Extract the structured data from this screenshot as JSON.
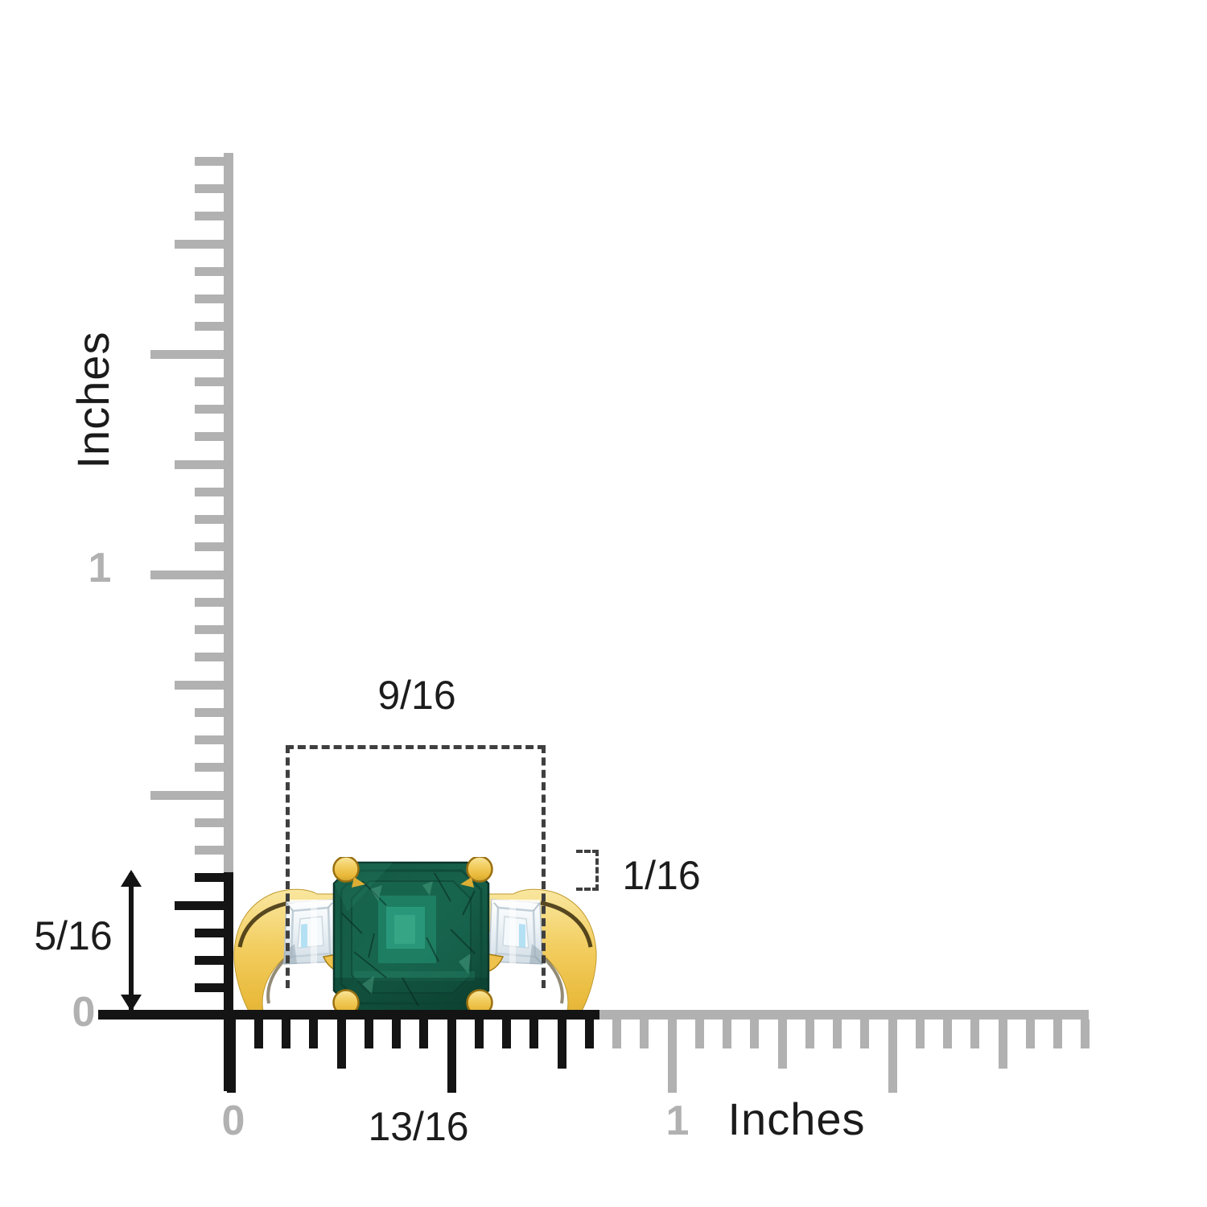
{
  "title": "Ring dimensions diagram",
  "rulers": {
    "colors": {
      "active": "#141414",
      "inactive": "#b1b1b1"
    },
    "vertical": {
      "unit_label": "Inches",
      "one_label": "1",
      "zero_label": "0"
    },
    "horizontal": {
      "unit_label": "Inches",
      "one_label": "1",
      "zero_label": "0"
    }
  },
  "measurements": {
    "annotation_color": "#3f3f3f",
    "stones_width_in": "9/16",
    "ring_height_in": "5/16",
    "band_thickness_in": "1/16",
    "overall_width_in": "13/16"
  },
  "ring": {
    "band": "yellow-gold-band",
    "center_stone": "emerald-cut-emerald",
    "side_stones": "emerald-cut-diamond-side-stones",
    "prongs": "yellow-gold-prongs",
    "colors": {
      "gold_light": "#f9e7a0",
      "gold": "#f0c852",
      "gold_dark": "#caa02c",
      "gold_edge": "#9a7010",
      "emerald_dark": "#0b352a",
      "emerald": "#16614b",
      "emerald_mid": "#1e8165",
      "emerald_light": "#2b9b7d",
      "diamond_light": "#ffffff",
      "diamond": "#e9f1f6",
      "diamond_edge": "#b7c4ce",
      "diamond_blue": "#a8dcf2"
    }
  }
}
